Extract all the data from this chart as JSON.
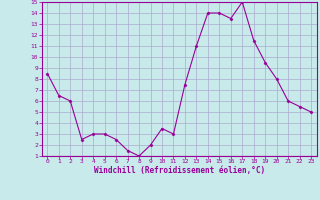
{
  "x": [
    0,
    1,
    2,
    3,
    4,
    5,
    6,
    7,
    8,
    9,
    10,
    11,
    12,
    13,
    14,
    15,
    16,
    17,
    18,
    19,
    20,
    21,
    22,
    23
  ],
  "y": [
    8.5,
    6.5,
    6.0,
    2.5,
    3.0,
    3.0,
    2.5,
    1.5,
    1.0,
    2.0,
    3.5,
    3.0,
    7.5,
    11.0,
    14.0,
    14.0,
    13.5,
    15.0,
    11.5,
    9.5,
    8.0,
    6.0,
    5.5,
    5.0
  ],
  "xlabel": "Windchill (Refroidissement éolien,°C)",
  "ylim": [
    1,
    15
  ],
  "yticks": [
    1,
    2,
    3,
    4,
    5,
    6,
    7,
    8,
    9,
    10,
    11,
    12,
    13,
    14,
    15
  ],
  "xticks": [
    0,
    1,
    2,
    3,
    4,
    5,
    6,
    7,
    8,
    9,
    10,
    11,
    12,
    13,
    14,
    15,
    16,
    17,
    18,
    19,
    20,
    21,
    22,
    23
  ],
  "line_color": "#990099",
  "marker": "D",
  "marker_size": 1.5,
  "bg_color": "#c8eaea",
  "grid_color": "#aaaacc",
  "label_color": "#990099",
  "axis_label_color": "#990099",
  "border_color": "#990099",
  "tick_fontsize": 4.5,
  "xlabel_fontsize": 5.5
}
